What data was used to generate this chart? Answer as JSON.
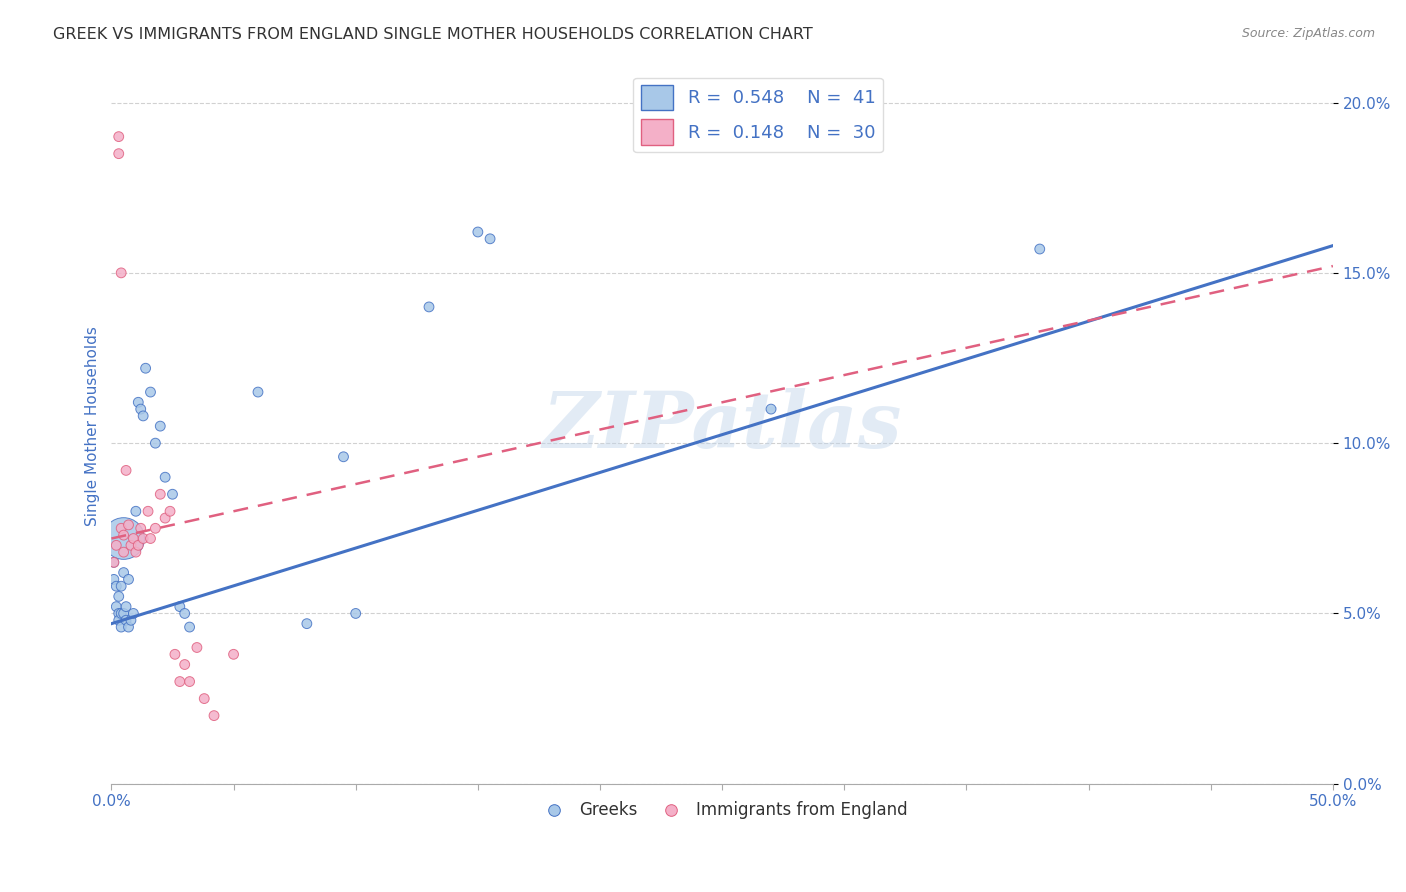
{
  "title": "GREEK VS IMMIGRANTS FROM ENGLAND SINGLE MOTHER HOUSEHOLDS CORRELATION CHART",
  "source": "Source: ZipAtlas.com",
  "ylabel": "Single Mother Households",
  "xlim": [
    0.0,
    0.5
  ],
  "ylim": [
    0.0,
    0.21
  ],
  "watermark": "ZIPatlas",
  "legend_series": [
    {
      "label": "Greeks",
      "R": "0.548",
      "N": "41",
      "color": "#a8c8e8",
      "line_color": "#4472c4"
    },
    {
      "label": "Immigrants from England",
      "R": "0.148",
      "N": "30",
      "color": "#f4b0c8",
      "line_color": "#e06080"
    }
  ],
  "greeks_x": [
    0.001,
    0.001,
    0.002,
    0.002,
    0.003,
    0.003,
    0.003,
    0.004,
    0.004,
    0.004,
    0.005,
    0.005,
    0.006,
    0.006,
    0.007,
    0.007,
    0.008,
    0.009,
    0.01,
    0.011,
    0.012,
    0.013,
    0.014,
    0.016,
    0.018,
    0.02,
    0.022,
    0.025,
    0.028,
    0.03,
    0.032,
    0.06,
    0.08,
    0.095,
    0.1,
    0.13,
    0.15,
    0.155,
    0.27,
    0.38,
    0.005
  ],
  "greeks_y": [
    0.065,
    0.06,
    0.058,
    0.052,
    0.055,
    0.05,
    0.048,
    0.058,
    0.05,
    0.046,
    0.062,
    0.05,
    0.052,
    0.048,
    0.06,
    0.046,
    0.048,
    0.05,
    0.08,
    0.112,
    0.11,
    0.108,
    0.122,
    0.115,
    0.1,
    0.105,
    0.09,
    0.085,
    0.052,
    0.05,
    0.046,
    0.115,
    0.047,
    0.096,
    0.05,
    0.14,
    0.162,
    0.16,
    0.11,
    0.157,
    0.072
  ],
  "greeks_size": [
    50,
    50,
    50,
    50,
    50,
    50,
    50,
    50,
    50,
    50,
    50,
    50,
    50,
    50,
    50,
    50,
    50,
    50,
    50,
    50,
    50,
    50,
    50,
    50,
    50,
    50,
    50,
    50,
    50,
    50,
    50,
    50,
    50,
    50,
    50,
    50,
    50,
    50,
    50,
    50,
    900
  ],
  "england_x": [
    0.001,
    0.002,
    0.003,
    0.003,
    0.004,
    0.004,
    0.005,
    0.005,
    0.006,
    0.007,
    0.008,
    0.009,
    0.01,
    0.011,
    0.012,
    0.013,
    0.015,
    0.016,
    0.018,
    0.02,
    0.022,
    0.024,
    0.026,
    0.028,
    0.03,
    0.032,
    0.035,
    0.038,
    0.042,
    0.05
  ],
  "england_y": [
    0.065,
    0.07,
    0.19,
    0.185,
    0.15,
    0.075,
    0.073,
    0.068,
    0.092,
    0.076,
    0.07,
    0.072,
    0.068,
    0.07,
    0.075,
    0.072,
    0.08,
    0.072,
    0.075,
    0.085,
    0.078,
    0.08,
    0.038,
    0.03,
    0.035,
    0.03,
    0.04,
    0.025,
    0.02,
    0.038
  ],
  "england_size": [
    50,
    50,
    50,
    50,
    50,
    50,
    50,
    50,
    50,
    50,
    50,
    50,
    50,
    50,
    50,
    50,
    50,
    50,
    50,
    50,
    50,
    50,
    50,
    50,
    50,
    50,
    50,
    50,
    50,
    50
  ],
  "greeks_line_x": [
    0.0,
    0.5
  ],
  "greeks_line_y": [
    0.047,
    0.158
  ],
  "england_line_x": [
    0.0,
    0.5
  ],
  "england_line_y": [
    0.072,
    0.152
  ],
  "background_color": "#ffffff",
  "grid_color": "#cccccc",
  "title_color": "#333333",
  "axis_label_color": "#4472c4",
  "tick_color": "#4472c4"
}
